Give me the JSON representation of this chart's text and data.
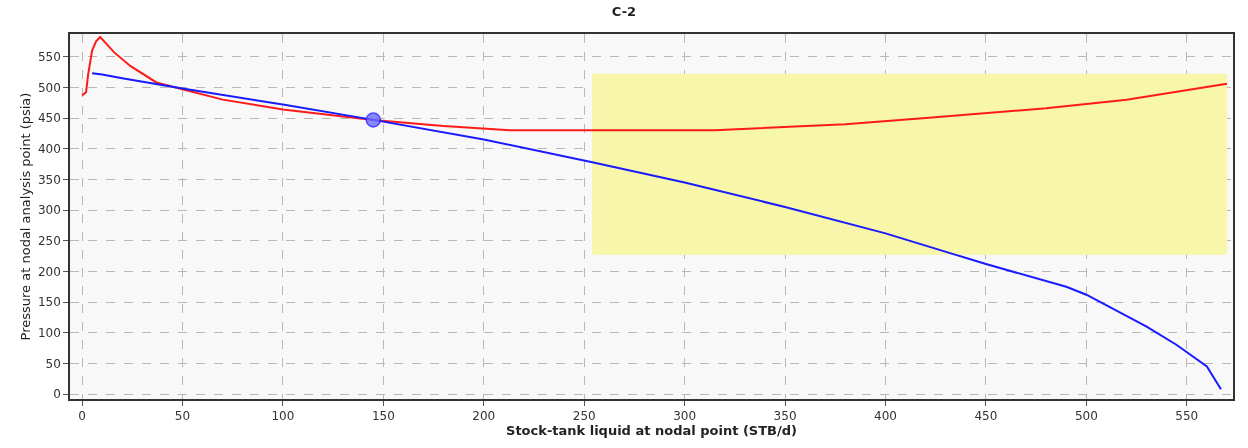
{
  "chart_data": {
    "type": "line",
    "title": "C-2",
    "xlabel": "Stock-tank liquid at nodal point (STB/d)",
    "ylabel": "Pressure at nodal analysis point (psia)",
    "xlim": [
      -6,
      573
    ],
    "ylim": [
      -8,
      587
    ],
    "xticks": [
      0,
      50,
      100,
      150,
      200,
      250,
      300,
      350,
      400,
      450,
      500,
      550
    ],
    "yticks": [
      0,
      50,
      100,
      150,
      200,
      250,
      300,
      350,
      400,
      450,
      500,
      550
    ],
    "grid": true,
    "marker": "none",
    "line_style": "solid",
    "series": [
      {
        "type": "area",
        "color": "#f8f6a8",
        "x": [
          254,
          570
        ],
        "lower": [
          227,
          227
        ],
        "upper": [
          522,
          522
        ],
        "values": [
          null,
          null
        ]
      },
      {
        "color": "#ff1a1a",
        "x": [
          0,
          2,
          3,
          5,
          7,
          9,
          11,
          16,
          24,
          37,
          50,
          70,
          100,
          145,
          180,
          213,
          250,
          315,
          380,
          420,
          480,
          520,
          570
        ],
        "values": [
          487,
          492,
          520,
          560,
          575,
          582,
          575,
          557,
          535,
          508,
          497,
          480,
          464,
          447,
          437,
          430,
          430,
          430,
          440,
          450,
          466,
          480,
          506
        ]
      },
      {
        "color": "#1a1aff",
        "x": [
          5,
          10,
          20,
          50,
          100,
          145,
          200,
          254,
          300,
          350,
          400,
          435,
          450,
          490,
          500,
          530,
          545,
          560,
          567
        ],
        "values": [
          523,
          521,
          515,
          498,
          472,
          447,
          415,
          378,
          345,
          305,
          262,
          227,
          212,
          175,
          162,
          110,
          80,
          45,
          8
        ]
      },
      {
        "type": "scatter",
        "marker": "circle",
        "color": "#6b6bff",
        "x": [
          145
        ],
        "values": [
          447
        ]
      }
    ]
  }
}
